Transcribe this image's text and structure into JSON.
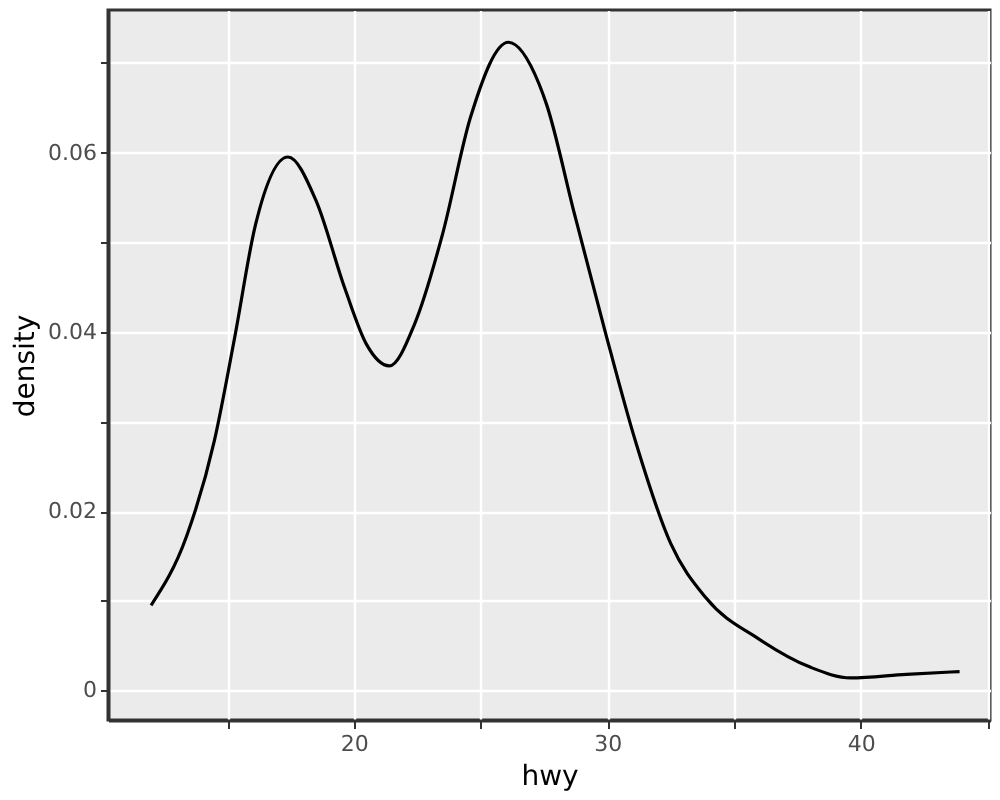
{
  "chart_data": {
    "type": "line",
    "xlabel": "hwy",
    "ylabel": "density",
    "x": [
      12.0,
      13.4,
      14.5,
      15.3,
      16.1,
      17.4,
      18.5,
      19.65,
      20.5,
      21.4,
      22.4,
      23.5,
      24.6,
      26.1,
      27.3,
      27.6,
      28.7,
      29.9,
      31.1,
      32.5,
      33.9,
      36.0,
      38.0,
      39.6,
      41.8,
      43.9
    ],
    "series": [
      {
        "color": "#000000",
        "values": [
          0.0095,
          0.0172,
          0.0279,
          0.0394,
          0.0517,
          0.0595,
          0.0547,
          0.0448,
          0.0386,
          0.0362,
          0.0409,
          0.0509,
          0.0639,
          0.0723,
          0.0677,
          0.0654,
          0.0532,
          0.0402,
          0.0279,
          0.0164,
          0.0103,
          0.0057,
          0.0026,
          0.0014,
          0.0018,
          0.0021
        ]
      }
    ],
    "xlim": [
      10.3,
      45.1
    ],
    "ylim": [
      -0.0033,
      0.0759
    ],
    "xticks": [
      {
        "value": 15,
        "label": null
      },
      20,
      {
        "value": 25,
        "label": null
      },
      30,
      {
        "value": 35,
        "label": null
      },
      40,
      {
        "value": 45,
        "label": null
      }
    ],
    "yticks": [
      0,
      {
        "value": 0.01,
        "label": null
      },
      {
        "value": 0.02,
        "label": "0.02"
      },
      {
        "value": 0.03,
        "label": null
      },
      {
        "value": 0.04,
        "label": "0.04"
      },
      {
        "value": 0.05,
        "label": null
      },
      {
        "value": 0.06,
        "label": "0.06"
      },
      {
        "value": 0.07,
        "label": null
      }
    ],
    "grid": true,
    "marker": "none",
    "line_style": "solid"
  }
}
